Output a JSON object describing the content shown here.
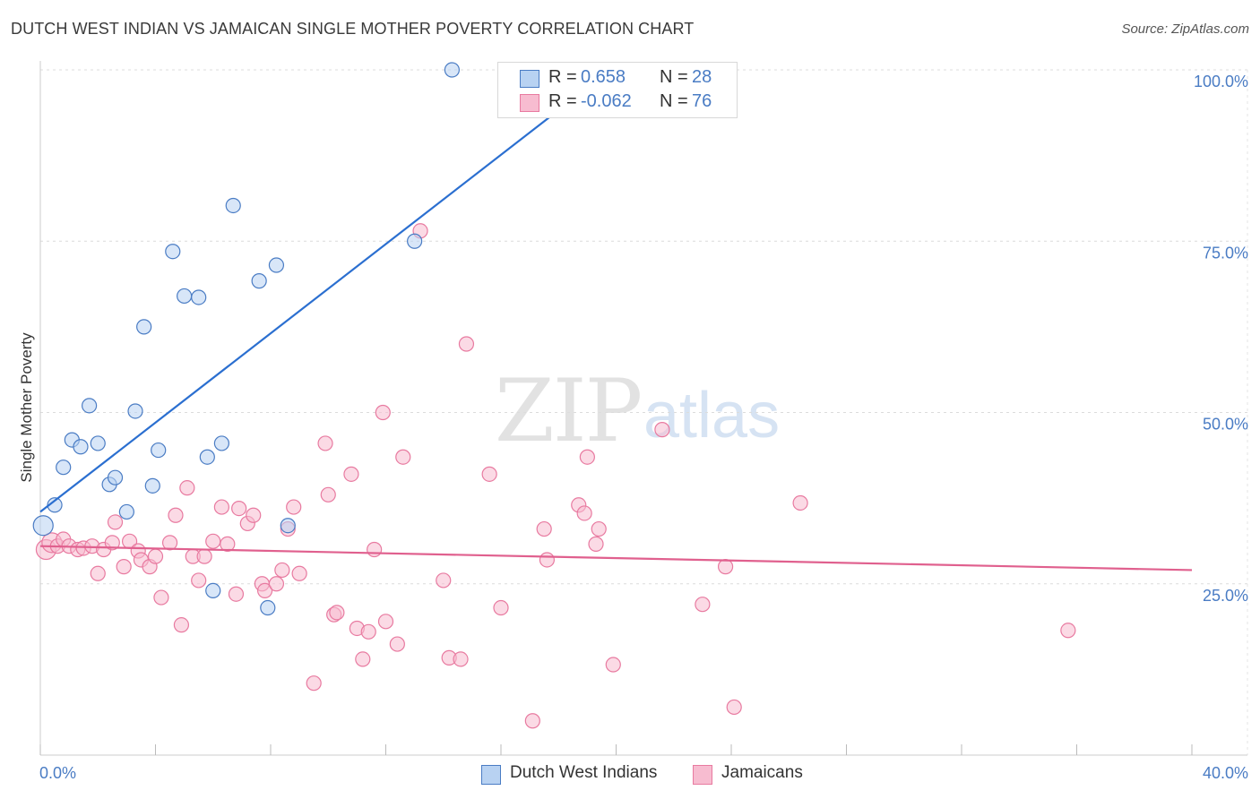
{
  "title": "DUTCH WEST INDIAN VS JAMAICAN SINGLE MOTHER POVERTY CORRELATION CHART",
  "source": "Source: ZipAtlas.com",
  "watermark": {
    "zip": "ZIP",
    "atlas": "atlas"
  },
  "colors": {
    "blue": "#4a7cc4",
    "blue_fill": "#b8d2f2",
    "blue_line": "#2b6fd0",
    "pink": "#e87aa0",
    "pink_fill": "#f7bcd0",
    "pink_line": "#e0608e"
  },
  "legend": {
    "rows": [
      {
        "r_label": "R =",
        "r_value": "0.658",
        "n_label": "N =",
        "n_value": "28"
      },
      {
        "r_label": "R =",
        "r_value": "-0.062",
        "n_label": "N =",
        "n_value": "76"
      }
    ]
  },
  "bottom_legend": {
    "series1": "Dutch West Indians",
    "series2": "Jamaicans"
  },
  "chart_data": {
    "type": "scatter",
    "title": "DUTCH WEST INDIAN VS JAMAICAN SINGLE MOTHER POVERTY CORRELATION CHART",
    "xlabel": "",
    "ylabel": "Single Mother Poverty",
    "xlim": [
      0,
      40
    ],
    "ylim": [
      0,
      102
    ],
    "x_tick_labels": [
      "0.0%",
      "40.0%"
    ],
    "y_ticks": [
      25,
      50,
      75,
      100
    ],
    "y_tick_labels": [
      "25.0%",
      "50.0%",
      "75.0%",
      "100.0%"
    ],
    "grid": true,
    "legend_position": "top-center",
    "series": [
      {
        "name": "Dutch West Indians",
        "r": 0.658,
        "n": 28,
        "trend": [
          [
            0.0,
            35.5
          ],
          [
            19.5,
            99.0
          ]
        ],
        "points": [
          [
            0.1,
            33.5
          ],
          [
            0.5,
            36.5
          ],
          [
            0.8,
            42.0
          ],
          [
            1.1,
            46.0
          ],
          [
            1.4,
            45.0
          ],
          [
            1.7,
            51.0
          ],
          [
            2.0,
            45.5
          ],
          [
            2.4,
            39.5
          ],
          [
            2.6,
            40.5
          ],
          [
            3.0,
            35.5
          ],
          [
            3.3,
            50.2
          ],
          [
            3.6,
            62.5
          ],
          [
            3.9,
            39.3
          ],
          [
            4.1,
            44.5
          ],
          [
            4.6,
            73.5
          ],
          [
            5.0,
            67.0
          ],
          [
            5.5,
            66.8
          ],
          [
            5.8,
            43.5
          ],
          [
            6.0,
            24.0
          ],
          [
            6.3,
            45.5
          ],
          [
            6.7,
            80.2
          ],
          [
            7.6,
            69.2
          ],
          [
            7.9,
            21.5
          ],
          [
            8.2,
            71.5
          ],
          [
            8.6,
            33.5
          ],
          [
            13.0,
            75.0
          ],
          [
            14.3,
            100.0
          ],
          [
            16.5,
            100.0
          ]
        ]
      },
      {
        "name": "Jamaicans",
        "r": -0.062,
        "n": 76,
        "trend": [
          [
            0.0,
            30.5
          ],
          [
            40.0,
            27.0
          ]
        ],
        "points": [
          [
            0.2,
            30.0
          ],
          [
            0.4,
            31.0
          ],
          [
            0.6,
            30.5
          ],
          [
            0.8,
            31.5
          ],
          [
            1.0,
            30.5
          ],
          [
            1.3,
            30.0
          ],
          [
            1.5,
            30.2
          ],
          [
            1.8,
            30.5
          ],
          [
            2.0,
            26.5
          ],
          [
            2.2,
            30.0
          ],
          [
            2.5,
            31.0
          ],
          [
            2.6,
            34.0
          ],
          [
            2.9,
            27.5
          ],
          [
            3.1,
            31.2
          ],
          [
            3.4,
            29.8
          ],
          [
            3.5,
            28.5
          ],
          [
            3.8,
            27.5
          ],
          [
            4.0,
            29.0
          ],
          [
            4.2,
            23.0
          ],
          [
            4.5,
            31.0
          ],
          [
            4.7,
            35.0
          ],
          [
            4.9,
            19.0
          ],
          [
            5.1,
            39.0
          ],
          [
            5.3,
            29.0
          ],
          [
            5.5,
            25.5
          ],
          [
            5.7,
            29.0
          ],
          [
            6.0,
            31.2
          ],
          [
            6.3,
            36.2
          ],
          [
            6.5,
            30.8
          ],
          [
            6.8,
            23.5
          ],
          [
            6.9,
            36.0
          ],
          [
            7.2,
            33.8
          ],
          [
            7.4,
            35.0
          ],
          [
            7.7,
            25.0
          ],
          [
            7.8,
            24.0
          ],
          [
            8.2,
            25.0
          ],
          [
            8.4,
            27.0
          ],
          [
            8.6,
            33.0
          ],
          [
            8.8,
            36.2
          ],
          [
            9.0,
            26.5
          ],
          [
            9.5,
            10.5
          ],
          [
            9.9,
            45.5
          ],
          [
            10.0,
            38.0
          ],
          [
            10.2,
            20.5
          ],
          [
            10.3,
            20.8
          ],
          [
            10.8,
            41.0
          ],
          [
            11.0,
            18.5
          ],
          [
            11.2,
            14.0
          ],
          [
            11.4,
            18.0
          ],
          [
            11.6,
            30.0
          ],
          [
            11.9,
            50.0
          ],
          [
            12.0,
            19.5
          ],
          [
            12.4,
            16.2
          ],
          [
            12.6,
            43.5
          ],
          [
            13.2,
            76.5
          ],
          [
            14.0,
            25.5
          ],
          [
            14.2,
            14.2
          ],
          [
            14.6,
            14.0
          ],
          [
            14.8,
            60.0
          ],
          [
            15.6,
            41.0
          ],
          [
            16.0,
            21.5
          ],
          [
            17.1,
            5.0
          ],
          [
            17.5,
            33.0
          ],
          [
            17.6,
            28.5
          ],
          [
            18.7,
            36.5
          ],
          [
            19.0,
            43.5
          ],
          [
            19.3,
            30.8
          ],
          [
            19.4,
            33.0
          ],
          [
            19.9,
            13.2
          ],
          [
            21.6,
            47.5
          ],
          [
            23.0,
            22.0
          ],
          [
            23.8,
            27.5
          ],
          [
            24.1,
            7.0
          ],
          [
            26.4,
            36.8
          ],
          [
            35.7,
            18.2
          ],
          [
            18.9,
            35.3
          ]
        ]
      }
    ]
  }
}
